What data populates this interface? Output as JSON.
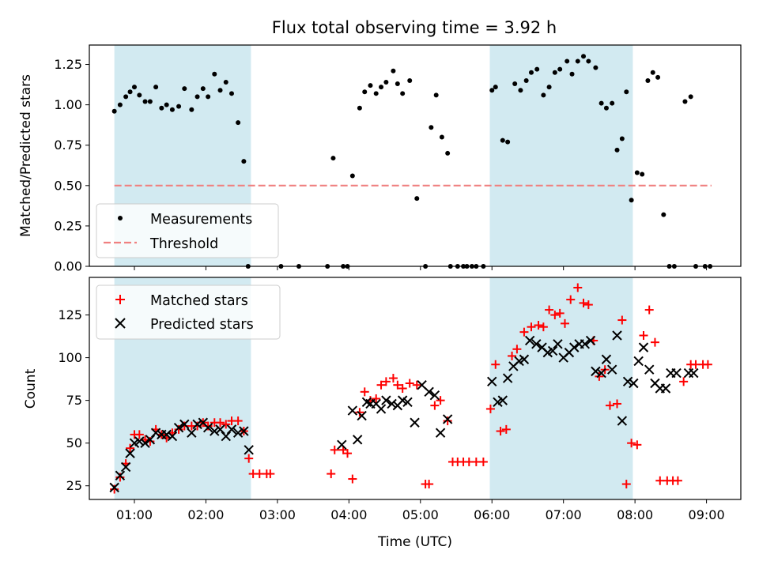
{
  "chart_data": {
    "title": "Flux total observing time = 3.92 h",
    "xlabel": "Time (UTC)",
    "xlim": [
      0.37,
      9.48
    ],
    "x_ticks": [
      {
        "v": 1,
        "label": "01:00"
      },
      {
        "v": 2,
        "label": "02:00"
      },
      {
        "v": 3,
        "label": "03:00"
      },
      {
        "v": 4,
        "label": "04:00"
      },
      {
        "v": 5,
        "label": "05:00"
      },
      {
        "v": 6,
        "label": "06:00"
      },
      {
        "v": 7,
        "label": "07:00"
      },
      {
        "v": 8,
        "label": "08:00"
      },
      {
        "v": 9,
        "label": "09:00"
      }
    ],
    "observing_windows": [
      [
        0.72,
        2.63
      ],
      [
        5.97,
        7.97
      ]
    ],
    "window_color": "#add8e6",
    "panels": [
      {
        "type": "scatter",
        "ylabel": "Matched/Predicted stars",
        "ylim": [
          0,
          1.37
        ],
        "y_ticks": [
          "0.00",
          "0.25",
          "0.50",
          "0.75",
          "1.00",
          "1.25"
        ],
        "threshold": {
          "name": "Threshold",
          "y": 0.5,
          "x_range": [
            0.72,
            9.07
          ],
          "color": "#f08080"
        },
        "legend": [
          "Measurements",
          "Threshold"
        ],
        "series": [
          {
            "name": "Measurements",
            "color": "#000000",
            "marker": "dot",
            "x": [
              0.72,
              0.8,
              0.88,
              0.94,
              1.0,
              1.07,
              1.15,
              1.22,
              1.3,
              1.38,
              1.45,
              1.53,
              1.62,
              1.7,
              1.8,
              1.88,
              1.96,
              2.03,
              2.12,
              2.2,
              2.28,
              2.36,
              2.45,
              2.53,
              2.59,
              3.05,
              3.3,
              3.7,
              3.78,
              3.92,
              3.98,
              4.05,
              4.15,
              4.22,
              4.3,
              4.38,
              4.45,
              4.52,
              4.62,
              4.68,
              4.75,
              4.85,
              4.95,
              5.07,
              5.15,
              5.22,
              5.3,
              5.38,
              5.42,
              5.52,
              5.6,
              5.65,
              5.72,
              5.78,
              5.88,
              6.0,
              6.05,
              6.15,
              6.22,
              6.32,
              6.4,
              6.48,
              6.55,
              6.63,
              6.72,
              6.8,
              6.88,
              6.95,
              7.05,
              7.12,
              7.2,
              7.28,
              7.35,
              7.45,
              7.53,
              7.6,
              7.68,
              7.75,
              7.82,
              7.88,
              7.95,
              8.03,
              8.1,
              8.18,
              8.25,
              8.32,
              8.4,
              8.48,
              8.55,
              8.7,
              8.78,
              8.85,
              8.98,
              9.05
            ],
            "y": [
              0.96,
              1.0,
              1.05,
              1.08,
              1.11,
              1.06,
              1.02,
              1.02,
              1.11,
              0.98,
              1.0,
              0.97,
              0.99,
              1.1,
              0.97,
              1.05,
              1.1,
              1.05,
              1.19,
              1.09,
              1.14,
              1.07,
              0.89,
              0.65,
              0.0,
              0.0,
              0.0,
              0.0,
              0.67,
              0.0,
              0.0,
              0.56,
              0.98,
              1.08,
              1.12,
              1.07,
              1.11,
              1.14,
              1.21,
              1.13,
              1.07,
              1.15,
              0.42,
              0.0,
              0.86,
              1.06,
              0.8,
              0.7,
              0.0,
              0.0,
              0.0,
              0.0,
              0.0,
              0.0,
              0.0,
              1.09,
              1.11,
              0.78,
              0.77,
              1.13,
              1.09,
              1.15,
              1.2,
              1.22,
              1.06,
              1.11,
              1.2,
              1.22,
              1.27,
              1.19,
              1.27,
              1.3,
              1.27,
              1.23,
              1.01,
              0.98,
              1.01,
              0.72,
              0.79,
              1.08,
              0.41,
              0.58,
              0.57,
              1.15,
              1.2,
              1.17,
              0.32,
              0.0,
              0.0,
              1.02,
              1.05,
              0.0,
              0.0,
              0.0
            ]
          }
        ]
      },
      {
        "type": "scatter",
        "ylabel": "Count",
        "ylim": [
          17,
          147
        ],
        "y_ticks": [
          "25",
          "50",
          "75",
          "100",
          "125"
        ],
        "legend": [
          "Matched stars",
          "Predicted stars"
        ],
        "series": [
          {
            "name": "Matched stars",
            "color": "#ff0000",
            "marker": "plus",
            "x": [
              0.72,
              0.8,
              0.88,
              0.94,
              1.0,
              1.07,
              1.15,
              1.22,
              1.3,
              1.38,
              1.45,
              1.53,
              1.62,
              1.7,
              1.8,
              1.88,
              1.96,
              2.03,
              2.12,
              2.2,
              2.28,
              2.36,
              2.45,
              2.53,
              2.6,
              2.66,
              2.75,
              2.85,
              2.9,
              3.75,
              3.8,
              3.92,
              3.98,
              4.05,
              4.15,
              4.22,
              4.3,
              4.38,
              4.45,
              4.52,
              4.62,
              4.68,
              4.75,
              4.85,
              4.95,
              5.07,
              5.12,
              5.2,
              5.28,
              5.38,
              5.45,
              5.52,
              5.6,
              5.68,
              5.78,
              5.88,
              5.98,
              6.05,
              6.12,
              6.2,
              6.28,
              6.35,
              6.45,
              6.55,
              6.65,
              6.72,
              6.8,
              6.88,
              6.95,
              7.02,
              7.1,
              7.2,
              7.28,
              7.35,
              7.42,
              7.5,
              7.58,
              7.65,
              7.75,
              7.82,
              7.88,
              7.95,
              8.03,
              8.12,
              8.2,
              8.28,
              8.35,
              8.45,
              8.53,
              8.6,
              8.68,
              8.78,
              8.85,
              8.95,
              9.02
            ],
            "y": [
              23,
              30,
              38,
              47,
              55,
              55,
              52,
              51,
              58,
              55,
              53,
              56,
              58,
              60,
              60,
              60,
              62,
              60,
              62,
              62,
              61,
              63,
              63,
              57,
              41,
              32,
              32,
              32,
              32,
              32,
              46,
              46,
              44,
              29,
              68,
              80,
              75,
              76,
              84,
              86,
              88,
              84,
              82,
              85,
              84,
              26,
              26,
              72,
              75,
              63,
              39,
              39,
              39,
              39,
              39,
              39,
              70,
              96,
              57,
              58,
              101,
              105,
              115,
              118,
              119,
              118,
              128,
              125,
              126,
              120,
              134,
              141,
              132,
              131,
              110,
              89,
              93,
              72,
              73,
              122,
              26,
              50,
              49,
              113,
              128,
              109,
              28,
              28,
              28,
              28,
              86,
              96,
              96,
              96,
              96
            ]
          },
          {
            "name": "Predicted stars",
            "color": "#000000",
            "marker": "x",
            "x": [
              0.72,
              0.8,
              0.88,
              0.94,
              1.0,
              1.07,
              1.15,
              1.22,
              1.3,
              1.38,
              1.45,
              1.53,
              1.62,
              1.7,
              1.8,
              1.88,
              1.96,
              2.03,
              2.12,
              2.2,
              2.28,
              2.36,
              2.45,
              2.53,
              2.6,
              3.9,
              4.05,
              4.12,
              4.18,
              4.25,
              4.3,
              4.38,
              4.45,
              4.52,
              4.6,
              4.68,
              4.75,
              4.82,
              4.92,
              5.02,
              5.12,
              5.2,
              5.28,
              5.38,
              6.0,
              6.08,
              6.15,
              6.22,
              6.3,
              6.38,
              6.45,
              6.53,
              6.62,
              6.7,
              6.78,
              6.85,
              6.92,
              7.0,
              7.08,
              7.15,
              7.22,
              7.3,
              7.38,
              7.45,
              7.53,
              7.6,
              7.68,
              7.75,
              7.82,
              7.9,
              7.98,
              8.05,
              8.12,
              8.2,
              8.28,
              8.35,
              8.43,
              8.5,
              8.58,
              8.75,
              8.82
            ],
            "y": [
              24,
              31,
              36,
              44,
              50,
              51,
              50,
              52,
              56,
              55,
              55,
              54,
              59,
              61,
              56,
              61,
              62,
              59,
              57,
              58,
              54,
              58,
              56,
              57,
              46,
              49,
              69,
              52,
              66,
              74,
              73,
              73,
              70,
              75,
              73,
              72,
              75,
              74,
              62,
              84,
              80,
              78,
              56,
              64,
              86,
              74,
              75,
              88,
              95,
              98,
              99,
              110,
              108,
              106,
              103,
              104,
              108,
              100,
              103,
              106,
              108,
              108,
              110,
              92,
              91,
              99,
              93,
              113,
              63,
              86,
              85,
              98,
              106,
              93,
              85,
              82,
              82,
              91,
              91,
              91,
              91
            ]
          }
        ]
      }
    ]
  }
}
